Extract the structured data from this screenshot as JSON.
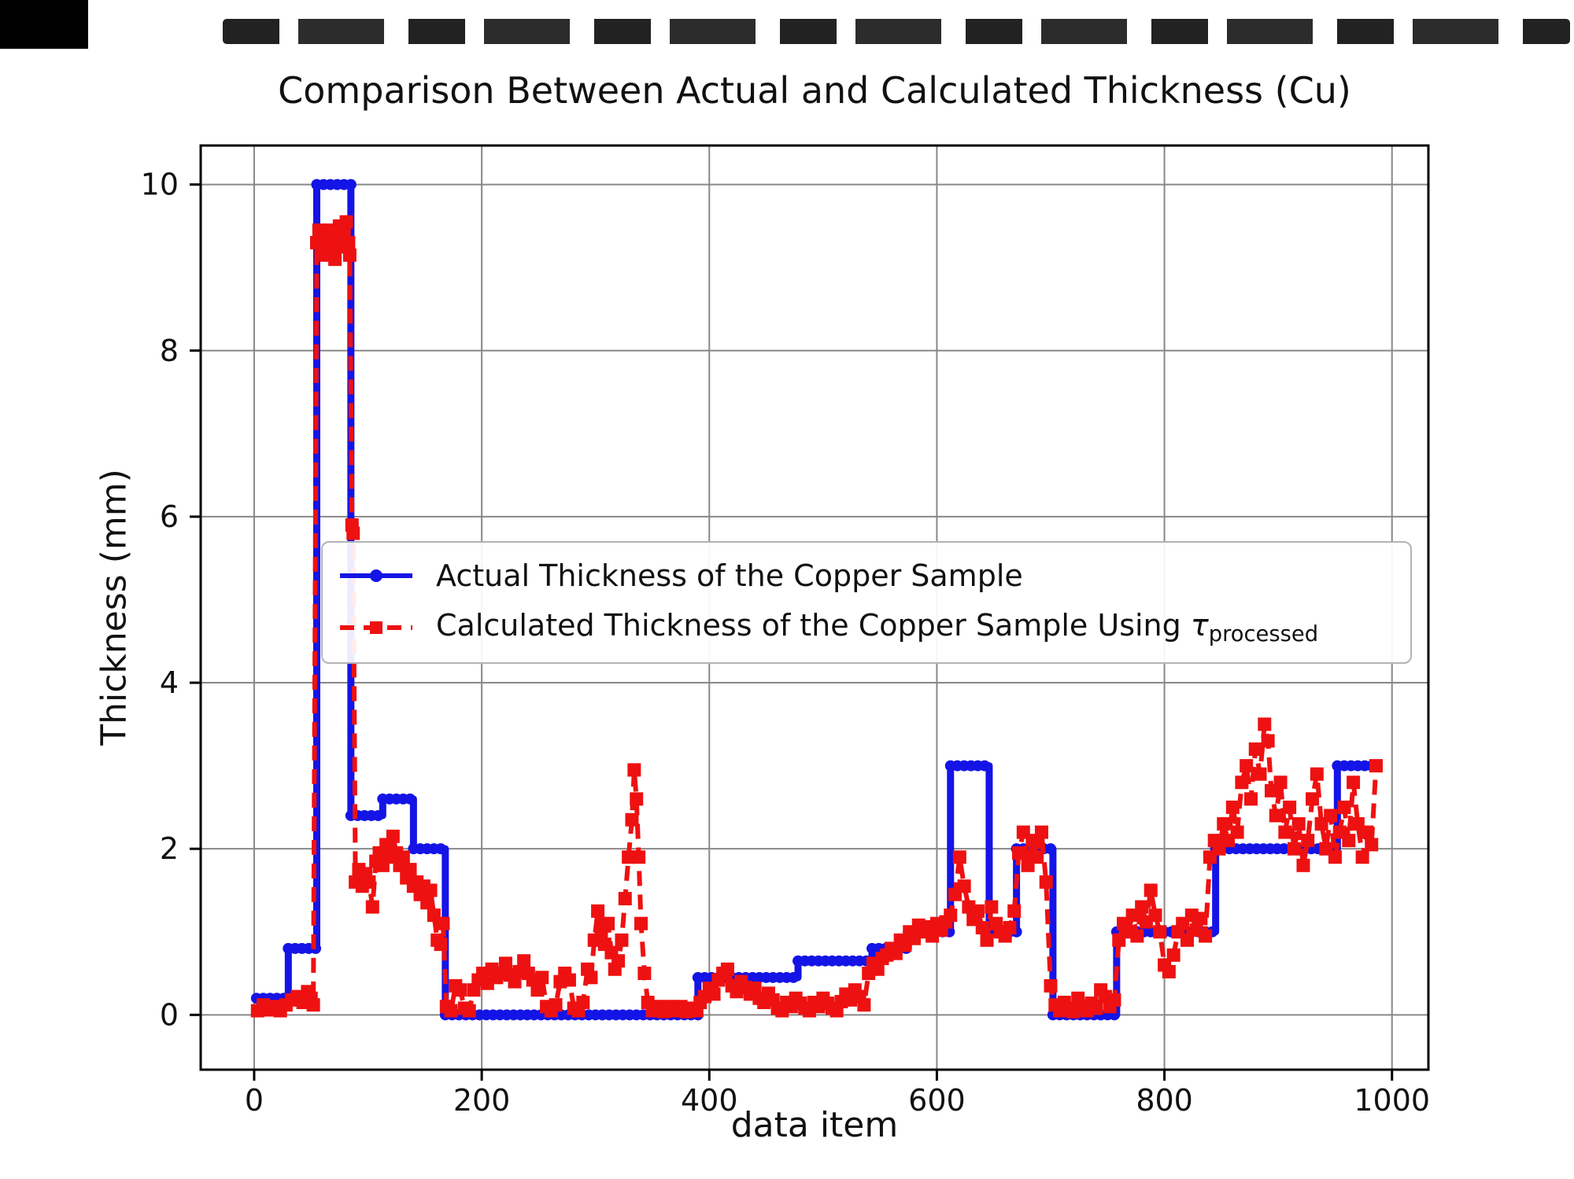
{
  "title_bar": {
    "artifact_note": "scan-artifact"
  },
  "legend": {
    "actual": "Actual Thickness of the Copper Sample",
    "calculated_prefix": "Calculated Thickness of the Copper Sample Using ",
    "tau": "τ",
    "tau_subscript": "processed"
  },
  "chart_data": {
    "type": "line",
    "title": "Comparison Between Actual and Calculated Thickness (Cu)",
    "xlabel": "data item",
    "ylabel": "Thickness (mm)",
    "xlim": [
      -47,
      1032
    ],
    "ylim": [
      -0.66,
      10.47
    ],
    "xticks": [
      0,
      200,
      400,
      600,
      800,
      1000
    ],
    "yticks": [
      0,
      2,
      4,
      6,
      8,
      10
    ],
    "grid": true,
    "grid_color": "#888888",
    "legend_position": "center-left",
    "series": [
      {
        "name": "Actual Thickness of the Copper Sample",
        "color": "#1414e6",
        "style": "solid",
        "marker": "circle",
        "steps": [
          [
            2,
            30,
            0.2
          ],
          [
            30,
            55,
            0.8
          ],
          [
            55,
            85,
            10
          ],
          [
            85,
            113,
            2.4
          ],
          [
            113,
            140,
            2.6
          ],
          [
            140,
            168,
            2.0
          ],
          [
            168,
            390,
            0
          ],
          [
            390,
            478,
            0.45
          ],
          [
            478,
            543,
            0.65
          ],
          [
            543,
            575,
            0.8
          ],
          [
            575,
            612,
            1.0
          ],
          [
            612,
            646,
            3.0
          ],
          [
            646,
            670,
            1.0
          ],
          [
            670,
            702,
            2.0
          ],
          [
            702,
            758,
            0
          ],
          [
            758,
            845,
            1.0
          ],
          [
            845,
            952,
            2.0
          ],
          [
            952,
            986,
            3.0
          ]
        ]
      },
      {
        "name": "Calculated Thickness of the Copper Sample Using τ_processed",
        "color": "#ee1111",
        "style": "dashed",
        "marker": "square",
        "points": [
          [
            3,
            0.05
          ],
          [
            8,
            0.12
          ],
          [
            13,
            0.06
          ],
          [
            18,
            0.1
          ],
          [
            23,
            0.05
          ],
          [
            28,
            0.12
          ],
          [
            33,
            0.18
          ],
          [
            38,
            0.22
          ],
          [
            43,
            0.15
          ],
          [
            47,
            0.28
          ],
          [
            50,
            0.2
          ],
          [
            52,
            0.12
          ],
          [
            55,
            9.3
          ],
          [
            57,
            9.45
          ],
          [
            59,
            9.2
          ],
          [
            61,
            9.35
          ],
          [
            63,
            9.15
          ],
          [
            65,
            9.3
          ],
          [
            67,
            9.45
          ],
          [
            69,
            9.25
          ],
          [
            71,
            9.1
          ],
          [
            73,
            9.35
          ],
          [
            75,
            9.5
          ],
          [
            77,
            9.25
          ],
          [
            79,
            9.4
          ],
          [
            81,
            9.55
          ],
          [
            83,
            9.3
          ],
          [
            84,
            9.15
          ],
          [
            86,
            5.9
          ],
          [
            87,
            5.8
          ],
          [
            89,
            1.6
          ],
          [
            92,
            1.75
          ],
          [
            95,
            1.55
          ],
          [
            98,
            1.7
          ],
          [
            101,
            1.6
          ],
          [
            104,
            1.3
          ],
          [
            107,
            1.85
          ],
          [
            110,
            1.95
          ],
          [
            113,
            1.8
          ],
          [
            116,
            2.05
          ],
          [
            119,
            1.9
          ],
          [
            122,
            2.15
          ],
          [
            125,
            1.95
          ],
          [
            128,
            1.8
          ],
          [
            131,
            1.9
          ],
          [
            134,
            1.65
          ],
          [
            137,
            1.75
          ],
          [
            140,
            1.55
          ],
          [
            143,
            1.6
          ],
          [
            146,
            1.45
          ],
          [
            149,
            1.55
          ],
          [
            152,
            1.35
          ],
          [
            155,
            1.5
          ],
          [
            158,
            1.2
          ],
          [
            161,
            0.9
          ],
          [
            164,
            0.85
          ],
          [
            166,
            1.1
          ],
          [
            169,
            0.1
          ],
          [
            173,
            0.05
          ],
          [
            177,
            0.35
          ],
          [
            181,
            0.3
          ],
          [
            185,
            0.08
          ],
          [
            189,
            0.05
          ],
          [
            193,
            0.3
          ],
          [
            197,
            0.42
          ],
          [
            201,
            0.5
          ],
          [
            205,
            0.38
          ],
          [
            209,
            0.55
          ],
          [
            213,
            0.45
          ],
          [
            217,
            0.5
          ],
          [
            221,
            0.62
          ],
          [
            225,
            0.48
          ],
          [
            229,
            0.4
          ],
          [
            233,
            0.52
          ],
          [
            237,
            0.65
          ],
          [
            241,
            0.5
          ],
          [
            245,
            0.42
          ],
          [
            249,
            0.3
          ],
          [
            253,
            0.45
          ],
          [
            257,
            0.1
          ],
          [
            261,
            0.05
          ],
          [
            265,
            0.12
          ],
          [
            269,
            0.4
          ],
          [
            273,
            0.5
          ],
          [
            277,
            0.42
          ],
          [
            281,
            0.08
          ],
          [
            285,
            0.05
          ],
          [
            289,
            0.15
          ],
          [
            293,
            0.55
          ],
          [
            296,
            0.45
          ],
          [
            299,
            0.9
          ],
          [
            302,
            1.25
          ],
          [
            305,
            1.0
          ],
          [
            308,
            0.85
          ],
          [
            311,
            1.1
          ],
          [
            314,
            0.75
          ],
          [
            317,
            0.55
          ],
          [
            320,
            0.65
          ],
          [
            323,
            0.9
          ],
          [
            326,
            1.4
          ],
          [
            329,
            1.9
          ],
          [
            332,
            2.35
          ],
          [
            334,
            2.95
          ],
          [
            336,
            2.6
          ],
          [
            338,
            1.9
          ],
          [
            340,
            1.1
          ],
          [
            343,
            0.5
          ],
          [
            346,
            0.15
          ],
          [
            350,
            0.05
          ],
          [
            355,
            0.1
          ],
          [
            360,
            0.04
          ],
          [
            365,
            0.1
          ],
          [
            370,
            0.05
          ],
          [
            375,
            0.1
          ],
          [
            380,
            0.04
          ],
          [
            385,
            0.08
          ],
          [
            389,
            0.05
          ],
          [
            392,
            0.15
          ],
          [
            396,
            0.22
          ],
          [
            400,
            0.32
          ],
          [
            404,
            0.25
          ],
          [
            408,
            0.42
          ],
          [
            412,
            0.5
          ],
          [
            416,
            0.55
          ],
          [
            420,
            0.35
          ],
          [
            424,
            0.28
          ],
          [
            428,
            0.4
          ],
          [
            432,
            0.33
          ],
          [
            436,
            0.25
          ],
          [
            440,
            0.32
          ],
          [
            444,
            0.2
          ],
          [
            448,
            0.15
          ],
          [
            452,
            0.26
          ],
          [
            456,
            0.18
          ],
          [
            460,
            0.08
          ],
          [
            464,
            0.05
          ],
          [
            468,
            0.15
          ],
          [
            472,
            0.1
          ],
          [
            476,
            0.2
          ],
          [
            480,
            0.14
          ],
          [
            484,
            0.08
          ],
          [
            488,
            0.05
          ],
          [
            492,
            0.15
          ],
          [
            496,
            0.1
          ],
          [
            500,
            0.2
          ],
          [
            504,
            0.14
          ],
          [
            508,
            0.08
          ],
          [
            512,
            0.05
          ],
          [
            516,
            0.16
          ],
          [
            520,
            0.25
          ],
          [
            524,
            0.18
          ],
          [
            528,
            0.3
          ],
          [
            532,
            0.22
          ],
          [
            536,
            0.12
          ],
          [
            540,
            0.5
          ],
          [
            544,
            0.62
          ],
          [
            548,
            0.55
          ],
          [
            552,
            0.68
          ],
          [
            556,
            0.72
          ],
          [
            560,
            0.8
          ],
          [
            564,
            0.74
          ],
          [
            568,
            0.9
          ],
          [
            572,
            0.84
          ],
          [
            576,
            1.0
          ],
          [
            580,
            0.92
          ],
          [
            584,
            1.08
          ],
          [
            588,
            1.0
          ],
          [
            592,
            1.06
          ],
          [
            596,
            0.95
          ],
          [
            600,
            1.1
          ],
          [
            604,
            1.02
          ],
          [
            608,
            1.12
          ],
          [
            612,
            1.2
          ],
          [
            616,
            1.45
          ],
          [
            620,
            1.9
          ],
          [
            624,
            1.55
          ],
          [
            628,
            1.3
          ],
          [
            632,
            1.15
          ],
          [
            636,
            1.25
          ],
          [
            640,
            1.05
          ],
          [
            644,
            0.9
          ],
          [
            648,
            1.3
          ],
          [
            652,
            1.1
          ],
          [
            656,
            1.0
          ],
          [
            660,
            0.95
          ],
          [
            664,
            1.05
          ],
          [
            668,
            1.25
          ],
          [
            672,
            1.95
          ],
          [
            676,
            2.2
          ],
          [
            680,
            1.8
          ],
          [
            684,
            2.1
          ],
          [
            688,
            1.9
          ],
          [
            692,
            2.2
          ],
          [
            696,
            1.6
          ],
          [
            700,
            0.35
          ],
          [
            704,
            0.12
          ],
          [
            708,
            0.05
          ],
          [
            712,
            0.15
          ],
          [
            716,
            0.08
          ],
          [
            720,
            0.04
          ],
          [
            724,
            0.2
          ],
          [
            728,
            0.1
          ],
          [
            732,
            0.05
          ],
          [
            736,
            0.14
          ],
          [
            740,
            0.08
          ],
          [
            744,
            0.3
          ],
          [
            748,
            0.22
          ],
          [
            752,
            0.1
          ],
          [
            756,
            0.18
          ],
          [
            760,
            0.9
          ],
          [
            764,
            1.1
          ],
          [
            768,
            1.0
          ],
          [
            772,
            1.2
          ],
          [
            776,
            0.95
          ],
          [
            780,
            1.3
          ],
          [
            784,
            1.12
          ],
          [
            788,
            1.5
          ],
          [
            792,
            1.2
          ],
          [
            796,
            1.0
          ],
          [
            800,
            0.6
          ],
          [
            804,
            0.52
          ],
          [
            808,
            0.72
          ],
          [
            812,
            1.0
          ],
          [
            816,
            1.1
          ],
          [
            820,
            0.9
          ],
          [
            824,
            1.2
          ],
          [
            828,
            1.02
          ],
          [
            832,
            1.16
          ],
          [
            836,
            0.95
          ],
          [
            840,
            1.9
          ],
          [
            844,
            2.1
          ],
          [
            848,
            2.0
          ],
          [
            852,
            2.3
          ],
          [
            856,
            2.1
          ],
          [
            860,
            2.5
          ],
          [
            864,
            2.2
          ],
          [
            868,
            2.8
          ],
          [
            872,
            3.0
          ],
          [
            876,
            2.6
          ],
          [
            880,
            3.2
          ],
          [
            884,
            2.9
          ],
          [
            888,
            3.5
          ],
          [
            891,
            3.3
          ],
          [
            894,
            2.7
          ],
          [
            898,
            2.4
          ],
          [
            902,
            2.8
          ],
          [
            906,
            2.2
          ],
          [
            910,
            2.5
          ],
          [
            914,
            2.0
          ],
          [
            918,
            2.3
          ],
          [
            922,
            1.8
          ],
          [
            926,
            2.1
          ],
          [
            930,
            2.6
          ],
          [
            934,
            2.9
          ],
          [
            938,
            2.3
          ],
          [
            942,
            2.0
          ],
          [
            946,
            2.4
          ],
          [
            950,
            1.9
          ],
          [
            954,
            2.2
          ],
          [
            958,
            2.5
          ],
          [
            962,
            2.1
          ],
          [
            966,
            2.8
          ],
          [
            970,
            2.3
          ],
          [
            974,
            1.9
          ],
          [
            978,
            2.2
          ],
          [
            982,
            2.05
          ],
          [
            986,
            3.0
          ]
        ]
      }
    ]
  }
}
